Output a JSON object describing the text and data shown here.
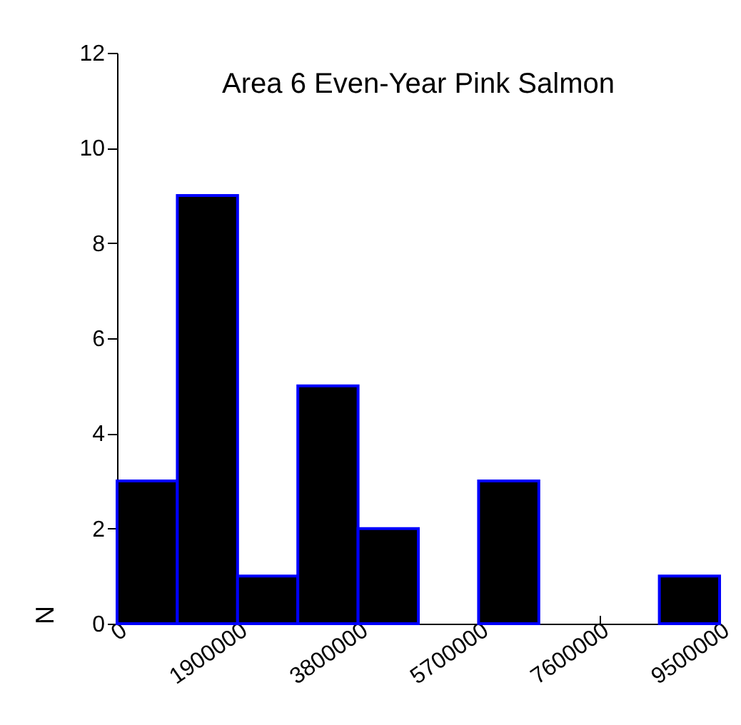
{
  "chart_data": {
    "type": "histogram",
    "title": "Area 6 Even-Year Pink Salmon",
    "ylabel": "N",
    "bins": [
      0,
      950000,
      1900000,
      2850000,
      3800000,
      4750000,
      5700000,
      6650000,
      7600000,
      8550000,
      9500000
    ],
    "values": [
      3,
      9,
      1,
      5,
      2,
      0,
      3,
      0,
      0,
      1
    ],
    "color": "#000000",
    "xlim": [
      0,
      9500000
    ],
    "xticks": [
      0,
      1900000,
      3800000,
      5700000,
      7600000,
      9500000
    ],
    "ylim": [
      0,
      12
    ],
    "yticks": [
      0,
      2,
      4,
      6,
      8,
      10,
      12
    ],
    "grid": false
  }
}
